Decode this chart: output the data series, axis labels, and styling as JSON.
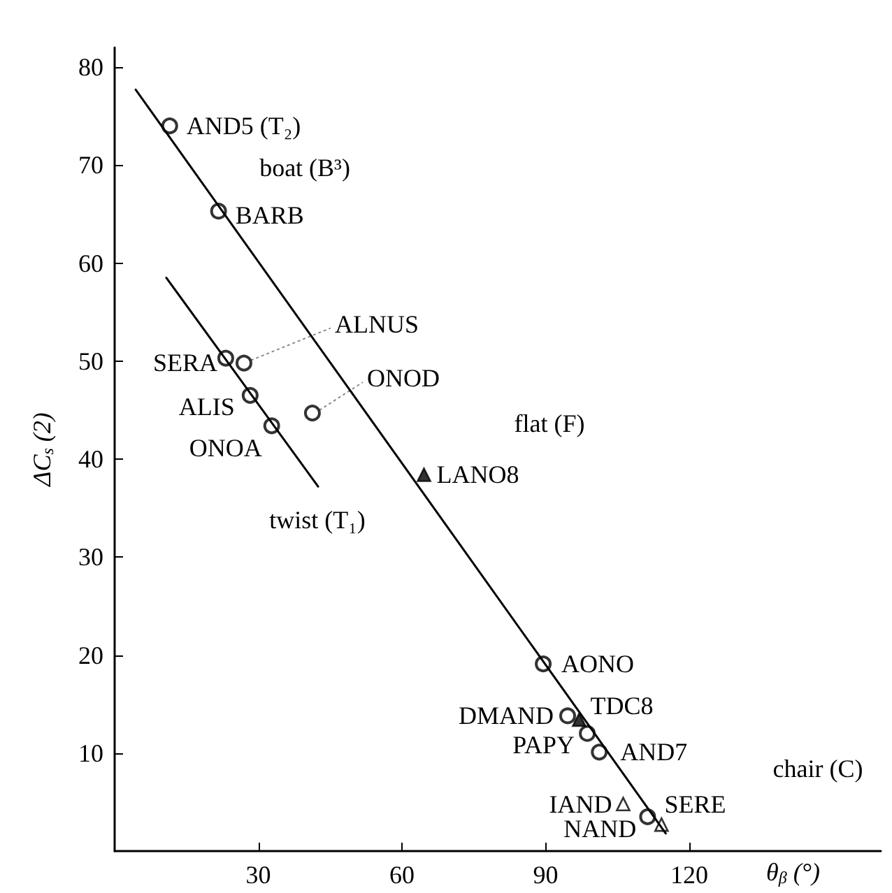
{
  "chart_data": {
    "type": "scatter",
    "xlabel": "θ$_{β}$ (°)",
    "ylabel": "ΔC$_{s}$ (2)",
    "xlim": [
      0,
      160
    ],
    "ylim": [
      0,
      82
    ],
    "xticks": [
      30,
      60,
      90,
      120
    ],
    "yticks": [
      10,
      20,
      30,
      40,
      50,
      60,
      70,
      80
    ],
    "grid": false,
    "series": [
      {
        "marker": "circle",
        "color": "#000000",
        "x": [
          11.5,
          21.7,
          23.2,
          27.0,
          28.3,
          32.8,
          41.3,
          89.5,
          94.6,
          98.7,
          101.2,
          111.3
        ],
        "values": [
          74.0,
          65.3,
          50.3,
          49.8,
          46.5,
          43.4,
          44.7,
          19.1,
          13.8,
          12.0,
          10.1,
          3.5
        ]
      },
      {
        "marker": "triangle",
        "color": "#000000",
        "x": [
          64.6,
          97.0
        ],
        "values": [
          38.4,
          13.4
        ]
      },
      {
        "marker": "triangle",
        "color": "#ffffff",
        "x": [
          106.2,
          114.2
        ],
        "values": [
          4.8,
          2.7
        ]
      },
      {
        "type": "line",
        "marker": "none",
        "color": "#000000",
        "x": [
          4.4,
          115.1
        ],
        "values": [
          77.7,
          1.8
        ]
      },
      {
        "type": "line",
        "marker": "none",
        "color": "#000000",
        "x": [
          10.8,
          42.5
        ],
        "values": [
          58.5,
          37.2
        ]
      }
    ],
    "annotations": [
      {
        "text": "AND5 (T₂)",
        "x": 11.5,
        "y": 74.0
      },
      "boat (B³)",
      {
        "text": "BARB",
        "x": 21.7,
        "y": 65.3
      },
      {
        "text": "ALNUS",
        "x": 27.0,
        "y": 49.8
      },
      {
        "text": "SERA",
        "x": 23.2,
        "y": 50.3
      },
      {
        "text": "ONOD",
        "x": 41.3,
        "y": 44.7
      },
      {
        "text": "ALIS",
        "x": 28.3,
        "y": 46.5
      },
      {
        "text": "ONOA",
        "x": 32.8,
        "y": 43.4
      },
      "flat (F)",
      {
        "text": "LANO8",
        "x": 64.6,
        "y": 38.4
      },
      "twist (T₁)",
      {
        "text": "AONO",
        "x": 89.5,
        "y": 19.1
      },
      {
        "text": "DMAND",
        "x": 94.6,
        "y": 13.8
      },
      {
        "text": "TDC8",
        "x": 97.0,
        "y": 13.4
      },
      {
        "text": "PAPY",
        "x": 98.7,
        "y": 12.0
      },
      {
        "text": "AND7",
        "x": 101.2,
        "y": 10.1
      },
      "chair (C)",
      {
        "text": "IAND",
        "x": 106.2,
        "y": 4.8
      },
      {
        "text": "SERE",
        "x": 111.3,
        "y": 3.5
      },
      {
        "text": "NAND",
        "x": 114.2,
        "y": 2.7
      }
    ]
  }
}
